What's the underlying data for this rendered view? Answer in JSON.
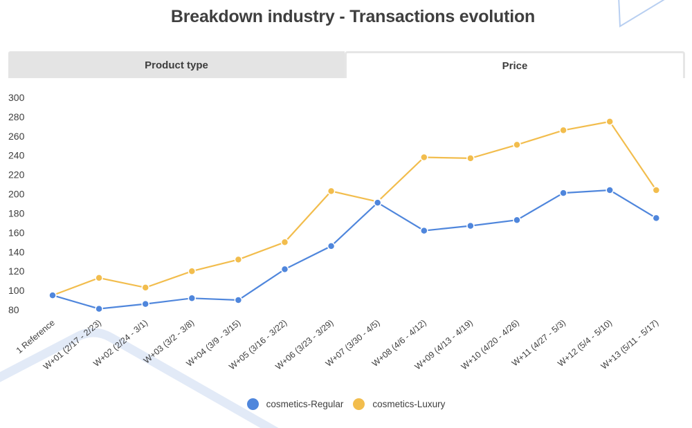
{
  "header": {
    "title": "Breakdown industry - Transactions evolution"
  },
  "tabs": [
    {
      "label": "Product type",
      "active": false
    },
    {
      "label": "Price",
      "active": true
    }
  ],
  "colors": {
    "regular": "#4f86dc",
    "luxury": "#f2bd4d",
    "decoration": "#dfe8f6"
  },
  "chart_data": {
    "type": "line",
    "title": "Breakdown industry - Transactions evolution",
    "xlabel": "",
    "ylabel": "",
    "ylim": [
      80,
      300
    ],
    "yticks": [
      80,
      100,
      120,
      140,
      160,
      180,
      200,
      220,
      240,
      260,
      280,
      300
    ],
    "grid": false,
    "legend_position": "bottom",
    "categories": [
      "1 Reference",
      "W+01 (2/17 - 2/23)",
      "W+02 (2/24 - 3/1)",
      "W+03 (3/2 - 3/8)",
      "W+04 (3/9 - 3/15)",
      "W+05 (3/16 - 3/22)",
      "W+06 (3/23 - 3/29)",
      "W+07 (3/30 - 4/5)",
      "W+08 (4/6 - 4/12)",
      "W+09 (4/13 - 4/19)",
      "W+10 (4/20 - 4/26)",
      "W+11 (4/27 - 5/3)",
      "W+12 (5/4 - 5/10)",
      "W+13 (5/11 - 5/17)"
    ],
    "series": [
      {
        "name": "cosmetics-Regular",
        "color": "#4f86dc",
        "values": [
          95,
          81,
          86,
          92,
          90,
          122,
          146,
          191,
          162,
          167,
          173,
          201,
          204,
          175
        ]
      },
      {
        "name": "cosmetics-Luxury",
        "color": "#f2bd4d",
        "values": [
          95,
          113,
          103,
          120,
          132,
          150,
          203,
          192,
          238,
          237,
          251,
          266,
          275,
          204
        ]
      }
    ]
  }
}
